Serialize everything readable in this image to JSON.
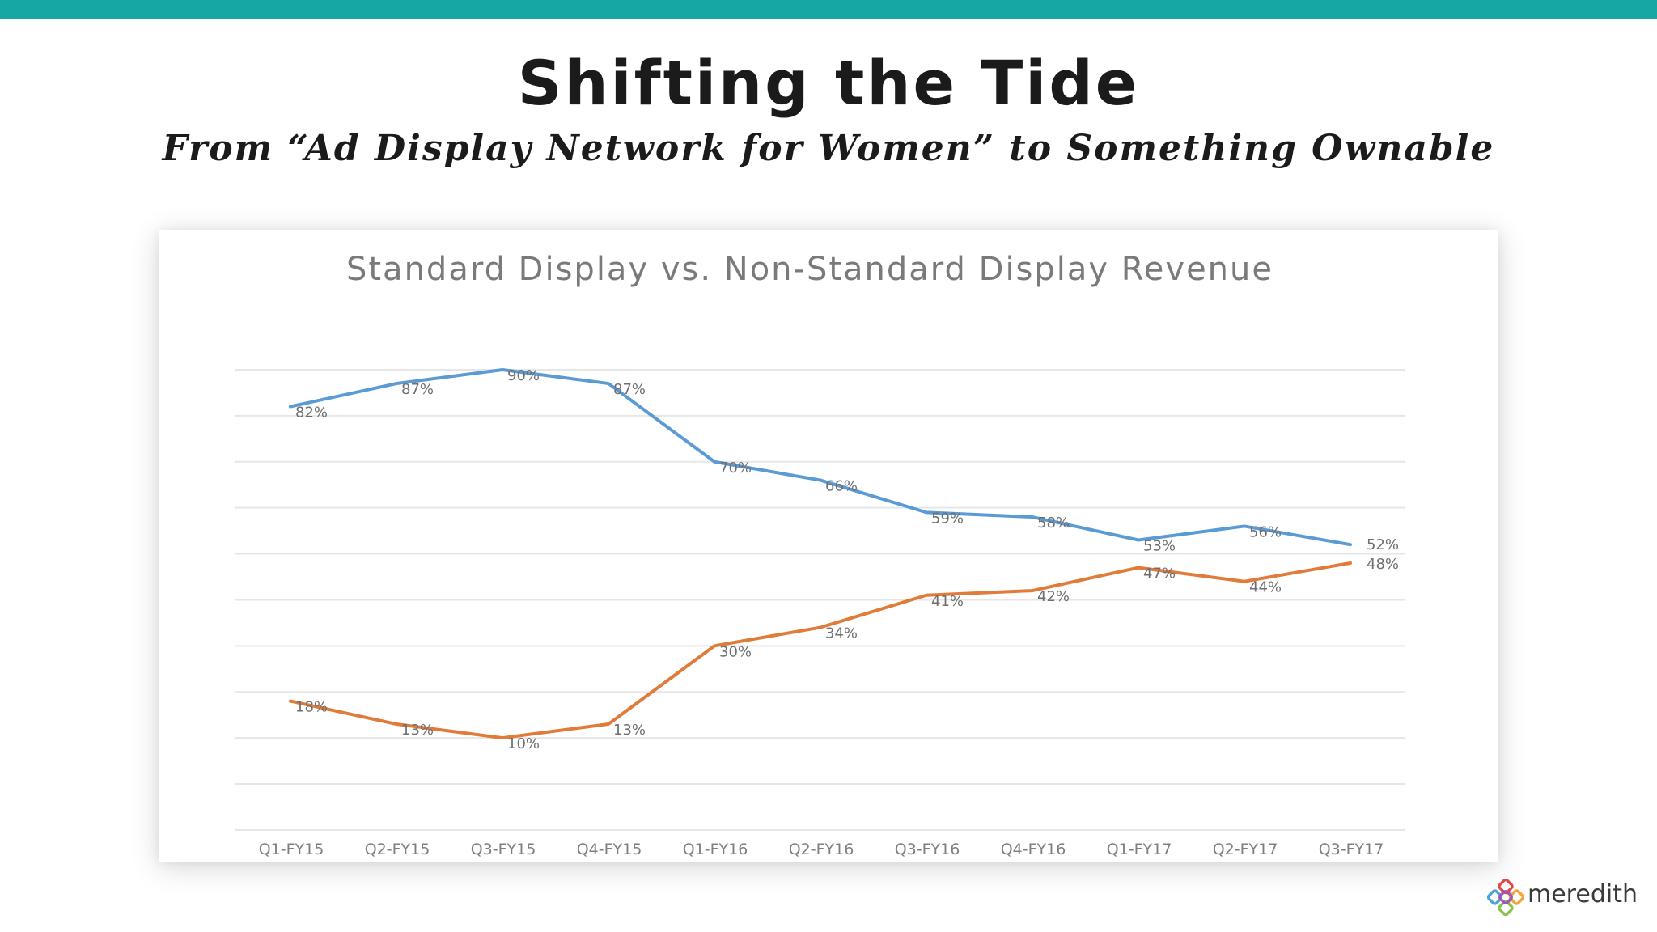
{
  "slide": {
    "title": "Shifting the Tide",
    "subtitle": "From “Ad Display Network for Women” to Something Ownable",
    "logo_text": "meredith",
    "accent_color": "#16a6a4"
  },
  "chart_data": {
    "type": "line",
    "title": "Standard Display vs. Non-Standard Display Revenue",
    "categories": [
      "Q1-FY15",
      "Q2-FY15",
      "Q3-FY15",
      "Q4-FY15",
      "Q1-FY16",
      "Q2-FY16",
      "Q3-FY16",
      "Q4-FY16",
      "Q1-FY17",
      "Q2-FY17",
      "Q3-FY17"
    ],
    "series": [
      {
        "color": "#5b9bd5",
        "values": [
          82,
          87,
          90,
          87,
          70,
          66,
          59,
          58,
          53,
          56,
          52
        ],
        "labels": [
          "82%",
          "87%",
          "90%",
          "87%",
          "70%",
          "66%",
          "59%",
          "58%",
          "53%",
          "56%",
          "52%"
        ]
      },
      {
        "color": "#e07b39",
        "values": [
          18,
          13,
          10,
          13,
          30,
          34,
          41,
          42,
          47,
          44,
          48
        ],
        "labels": [
          "18%",
          "13%",
          "10%",
          "13%",
          "30%",
          "34%",
          "41%",
          "42%",
          "47%",
          "44%",
          "48%"
        ]
      }
    ],
    "ylim": [
      0,
      90
    ],
    "grid": true,
    "xlabel": "",
    "ylabel": ""
  }
}
